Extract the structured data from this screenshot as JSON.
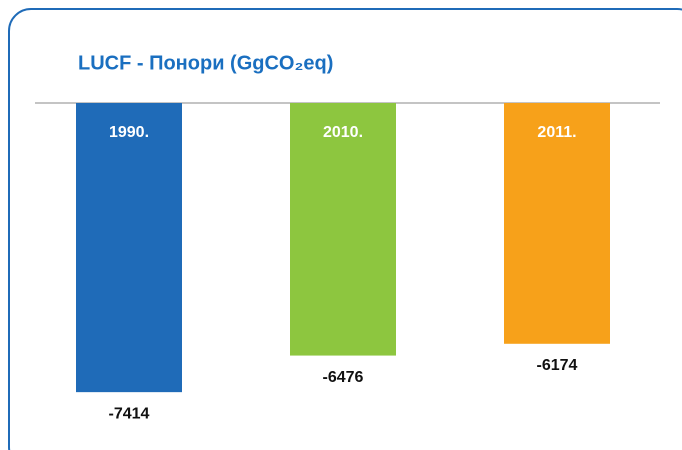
{
  "chart_data": {
    "type": "bar",
    "title": "LUCF - Понори (GgCO₂eq)",
    "categories": [
      "1990.",
      "2010.",
      "2011."
    ],
    "values": [
      -7414,
      -6476,
      -6174
    ],
    "colors": [
      "#1f6bb8",
      "#8dc63f",
      "#f7a11a"
    ],
    "ylim": [
      -8000,
      0
    ]
  }
}
